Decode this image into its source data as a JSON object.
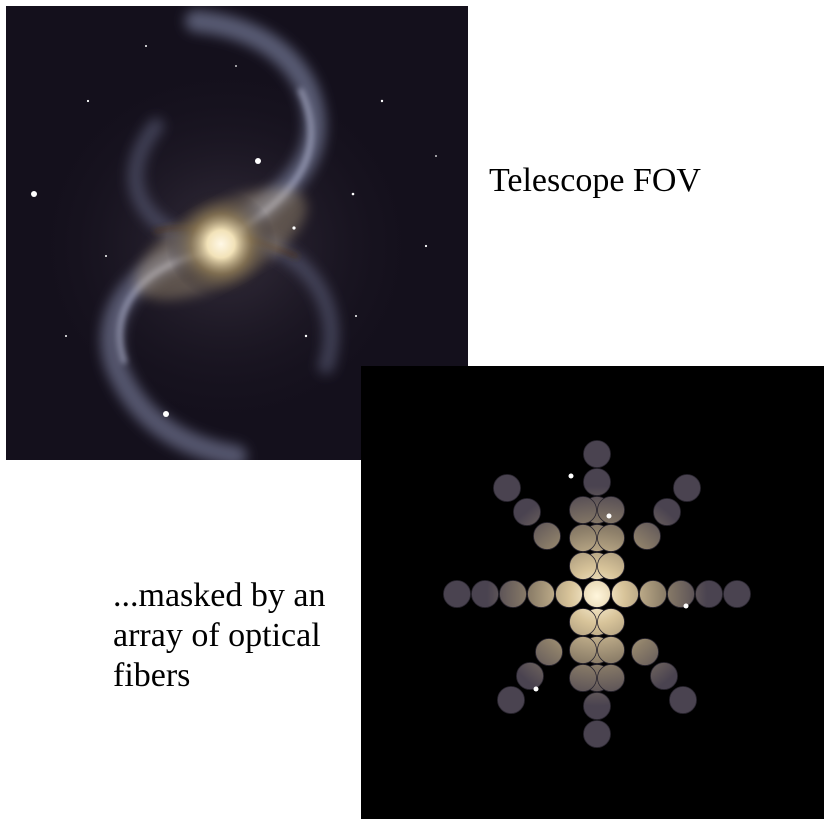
{
  "labels": {
    "fov": "Telescope FOV",
    "mask": "...masked by an\narray of optical\nfibers"
  },
  "images": {
    "galaxy": {
      "subject": "barred-spiral-galaxy",
      "background": "#14101c"
    },
    "fibers": {
      "subject": "fiber-array-masked-galaxy",
      "background": "#000000"
    }
  }
}
